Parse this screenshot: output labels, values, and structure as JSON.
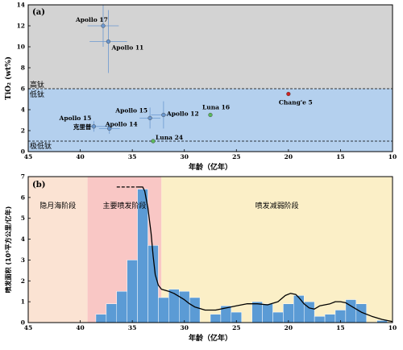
{
  "chart_data": [
    {
      "type": "scatter",
      "panel_label": "(a)",
      "ylabel": "TiO₂ (wt%)",
      "xlabel": "年龄（亿年）",
      "xlim": [
        45,
        10
      ],
      "ylim": [
        0,
        14
      ],
      "x_ticks": [
        "45",
        "40",
        "35",
        "30",
        "25",
        "20",
        "15",
        "10"
      ],
      "y_ticks": [
        "0",
        "2",
        "4",
        "6",
        "8",
        "10",
        "12",
        "14"
      ],
      "regions": [
        {
          "name": "高钛",
          "y0": 6,
          "y1": 14,
          "color": "#d3d3d3"
        },
        {
          "name": "低钛",
          "y0": 1,
          "y1": 6,
          "color": "#b4d0ee"
        },
        {
          "name": "极低钛",
          "y0": 0,
          "y1": 1,
          "color": "#b4d0ee"
        }
      ],
      "region_labels": {
        "high": "高钛",
        "low": "低钛",
        "very_low": "极低钛"
      },
      "thresholds": [
        6,
        1
      ],
      "points": [
        {
          "label": "Apollo 17",
          "x": 37.8,
          "y": 12.0,
          "xerr": 1.5,
          "yerr": 2.0,
          "color": "#6a97cf"
        },
        {
          "label": "Apollo 11",
          "x": 37.3,
          "y": 10.5,
          "xerr": 1.8,
          "yerr": 3.0,
          "color": "#6a97cf"
        },
        {
          "label": "Apollo 15",
          "x": 33.3,
          "y": 3.2,
          "xerr": 1.0,
          "yerr": 1.0,
          "color": "#6a97cf"
        },
        {
          "label": "Apollo 12",
          "x": 32.0,
          "y": 3.5,
          "xerr": 1.2,
          "yerr": 1.3,
          "color": "#6a97cf"
        },
        {
          "label": "Apollo 15",
          "x": 38.7,
          "y": 2.4,
          "xerr": 1.5,
          "yerr": 0.5,
          "color": "#6a97cf"
        },
        {
          "label": "克里普",
          "x": 38.7,
          "y": 2.4,
          "xerr": 0,
          "yerr": 0,
          "color": "#6a97cf",
          "hide_marker": true
        },
        {
          "label": "Apollo 14",
          "x": 37.2,
          "y": 2.2,
          "xerr": 1.0,
          "yerr": 0.5,
          "color": "#6a97cf"
        },
        {
          "label": "Luna 16",
          "x": 27.5,
          "y": 3.5,
          "xerr": 0,
          "yerr": 0,
          "color": "#5cb85c"
        },
        {
          "label": "Luna 24",
          "x": 33.0,
          "y": 1.0,
          "xerr": 0,
          "yerr": 0,
          "color": "#5cb85c"
        },
        {
          "label": "Chang'e 5",
          "x": 20.0,
          "y": 5.5,
          "xerr": 0,
          "yerr": 0,
          "color": "#cc2222"
        }
      ]
    },
    {
      "type": "bar",
      "panel_label": "(b)",
      "ylabel": "喷发面积 (10⁵平方公里/亿年)",
      "xlabel": "年龄（亿年）",
      "xlim": [
        45,
        10
      ],
      "ylim": [
        0,
        7
      ],
      "x_ticks": [
        "45",
        "40",
        "35",
        "30",
        "25",
        "20",
        "15",
        "10"
      ],
      "y_ticks": [
        "0",
        "1",
        "2",
        "3",
        "4",
        "5",
        "6",
        "7"
      ],
      "phases": [
        {
          "label": "隐月海阶段",
          "x0": 45,
          "x1": 39.3,
          "color": "#fbe3d3"
        },
        {
          "label": "主要喷发阶段",
          "x0": 39.3,
          "x1": 32.2,
          "color": "#f9c7c5"
        },
        {
          "label": "喷发减弱阶段",
          "x0": 32.2,
          "x1": 10,
          "color": "#fbefc7"
        }
      ],
      "bar_color": "#5b9bd5",
      "bars": [
        {
          "x0": 38.5,
          "x1": 37.5,
          "value": 0.4
        },
        {
          "x0": 37.5,
          "x1": 36.5,
          "value": 0.9
        },
        {
          "x0": 36.5,
          "x1": 35.5,
          "value": 1.5
        },
        {
          "x0": 35.5,
          "x1": 34.5,
          "value": 3.0
        },
        {
          "x0": 34.5,
          "x1": 33.5,
          "value": 6.4
        },
        {
          "x0": 33.5,
          "x1": 32.5,
          "value": 3.7
        },
        {
          "x0": 32.5,
          "x1": 31.5,
          "value": 1.2
        },
        {
          "x0": 31.5,
          "x1": 30.5,
          "value": 1.6
        },
        {
          "x0": 30.5,
          "x1": 29.5,
          "value": 1.5
        },
        {
          "x0": 29.5,
          "x1": 28.5,
          "value": 1.2
        },
        {
          "x0": 27.5,
          "x1": 26.5,
          "value": 0.4
        },
        {
          "x0": 26.5,
          "x1": 25.5,
          "value": 0.8
        },
        {
          "x0": 25.5,
          "x1": 24.5,
          "value": 0.5
        },
        {
          "x0": 23.5,
          "x1": 22.5,
          "value": 1.0
        },
        {
          "x0": 22.5,
          "x1": 21.5,
          "value": 0.9
        },
        {
          "x0": 21.5,
          "x1": 20.5,
          "value": 0.5
        },
        {
          "x0": 20.5,
          "x1": 19.5,
          "value": 0.9
        },
        {
          "x0": 19.5,
          "x1": 18.5,
          "value": 1.3
        },
        {
          "x0": 18.5,
          "x1": 17.5,
          "value": 1.0
        },
        {
          "x0": 17.5,
          "x1": 16.5,
          "value": 0.3
        },
        {
          "x0": 16.5,
          "x1": 15.5,
          "value": 0.4
        },
        {
          "x0": 15.5,
          "x1": 14.5,
          "value": 0.6
        },
        {
          "x0": 14.5,
          "x1": 13.5,
          "value": 1.1
        },
        {
          "x0": 13.5,
          "x1": 12.5,
          "value": 0.9
        },
        {
          "x0": 11.5,
          "x1": 10.5,
          "value": 0.1
        }
      ],
      "trend_line": {
        "x": [
          36.5,
          35.5,
          34.5,
          34.0,
          33.8,
          33.5,
          33.2,
          33.0,
          32.8,
          32.5,
          32.2,
          31.5,
          31.0,
          30.5,
          30.0,
          29.5,
          29.0,
          28.0,
          27.0,
          26.0,
          25.0,
          24.0,
          23.0,
          22.0,
          21.0,
          20.3,
          19.8,
          19.3,
          19.0,
          18.5,
          18.0,
          17.5,
          17.0,
          16.0,
          15.5,
          15.0,
          14.5,
          14.0,
          13.0,
          12.0,
          11.0,
          10.0
        ],
        "y": [
          6.5,
          6.5,
          6.5,
          6.5,
          6.3,
          5.5,
          4.3,
          3.2,
          2.3,
          1.8,
          1.6,
          1.5,
          1.4,
          1.25,
          1.1,
          0.9,
          0.75,
          0.6,
          0.6,
          0.7,
          0.8,
          0.9,
          0.9,
          0.85,
          1.0,
          1.3,
          1.4,
          1.35,
          1.2,
          0.9,
          0.7,
          0.65,
          0.8,
          0.9,
          1.0,
          1.0,
          0.95,
          0.8,
          0.5,
          0.3,
          0.15,
          0.05
        ]
      },
      "trend_dashed_until": 34.5
    }
  ]
}
